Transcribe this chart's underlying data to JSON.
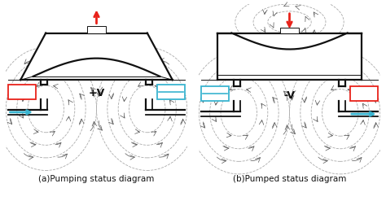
{
  "fig_width": 4.74,
  "fig_height": 2.47,
  "dpi": 100,
  "bg_color": "#ffffff",
  "left_label": "(a)Pumping status diagram",
  "right_label": "(b)Pumped status diagram",
  "left_voltage": "+V",
  "right_voltage": "-V",
  "red_color": "#e8221a",
  "blue_color": "#3ab4d0",
  "black_color": "#111111",
  "ellipse_color": "#aaaaaa",
  "body_lw": 1.6,
  "thin_lw": 0.7,
  "label_fontsize": 7.5
}
